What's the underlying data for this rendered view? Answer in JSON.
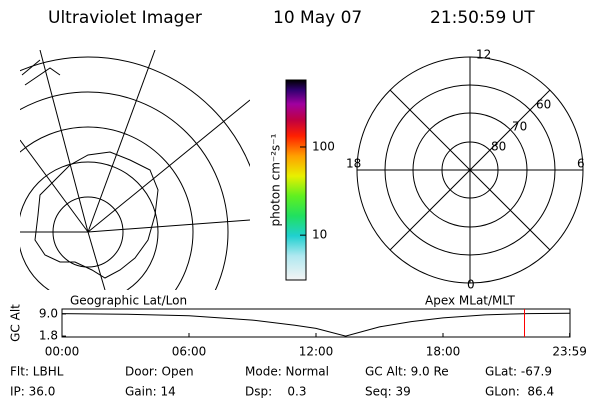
{
  "header": {
    "title": "Ultraviolet Imager",
    "date": "10 May 07",
    "time": "21:50:59 UT"
  },
  "geo_panel": {
    "label": "Geographic Lat/Lon"
  },
  "mag_panel": {
    "label": "Apex MLat/MLT",
    "mlt_labels": [
      "12",
      "18",
      "6",
      "0"
    ],
    "lat_labels": [
      "60",
      "70",
      "80"
    ]
  },
  "colorbar": {
    "label": "photon cm⁻²s⁻¹",
    "scale": "log",
    "lim": [
      3.1,
      575
    ],
    "ticks": [
      10,
      100
    ]
  },
  "chart_data": {
    "type": "line",
    "ylabel": "GC Alt",
    "x": [
      0,
      3,
      6,
      9,
      11,
      12,
      13.4,
      15,
      16.5,
      18,
      20,
      22,
      24
    ],
    "series": [
      {
        "color": "#000000",
        "values": [
          9.1,
          8.9,
          8.4,
          7.0,
          5.3,
          4.3,
          1.8,
          4.8,
          6.5,
          7.7,
          8.7,
          9.1,
          9.2
        ]
      }
    ],
    "xlim": [
      0,
      24
    ],
    "xticks": [
      {
        "value": 0,
        "label": "00:00"
      },
      {
        "value": 6,
        "label": "06:00"
      },
      {
        "value": 12,
        "label": "12:00"
      },
      {
        "value": 18,
        "label": "18:00"
      },
      {
        "value": 23.983,
        "label": "23:59"
      }
    ],
    "ylim": [
      1.5,
      10.6
    ],
    "yticks": [
      {
        "value": 9,
        "label": "9.0"
      },
      1.8
    ],
    "marker_x": 21.85,
    "marker_color": "#ff0000"
  },
  "footer": {
    "rows": [
      [
        "Flt: LBHL",
        "Door: Open",
        "Mode: Normal",
        "GC Alt: 9.0 Re",
        "GLat: -67.9"
      ],
      [
        "IP: 36.0",
        "Gain: 14",
        "Dsp:    0.3",
        "Seq: 39",
        "GLon:  86.4"
      ]
    ]
  }
}
